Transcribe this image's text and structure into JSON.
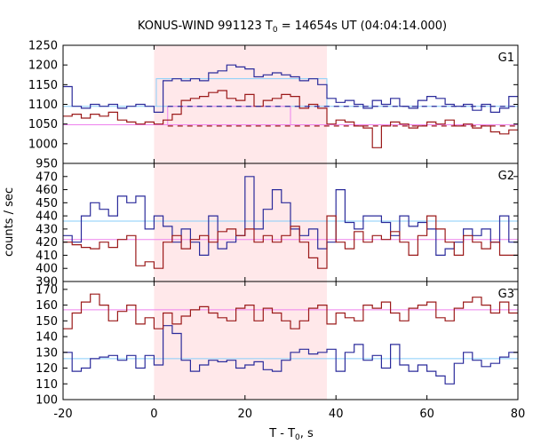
{
  "chart_data": {
    "type": "line",
    "title_main": "KONUS-WIND 991123 T",
    "title_sub": "0",
    "title_rest": " = 14654s UT (04:04:14.000)",
    "xlabel_main": "T - T",
    "xlabel_sub": "0",
    "xlabel_rest": ", s",
    "ylabel": "counts / sec",
    "xlim": [
      -20,
      80
    ],
    "x_ticks": [
      "-20",
      "0",
      "20",
      "40",
      "60",
      "80"
    ],
    "x_tick_values": [
      -20,
      0,
      20,
      40,
      60,
      80
    ],
    "shaded_region": [
      0,
      38
    ],
    "shade_color": "#ffe8ea",
    "colors": {
      "blue": "#2b2b9b",
      "red": "#9b1a1a",
      "cyan": "#87cefa",
      "pink": "#ee82ee"
    },
    "panels": [
      {
        "name": "G1",
        "ylim": [
          950,
          1250
        ],
        "y_ticks": [
          950,
          1000,
          1050,
          1100,
          1150,
          1200,
          1250
        ],
        "y_tick_labels": [
          "950",
          "1000",
          "1050",
          "1100",
          "1150",
          "1200",
          "1250"
        ],
        "bin_start": -20,
        "bin_width": 2,
        "blue": [
          1145,
          1095,
          1090,
          1100,
          1095,
          1100,
          1090,
          1095,
          1100,
          1095,
          1080,
          1160,
          1165,
          1160,
          1165,
          1160,
          1180,
          1185,
          1200,
          1195,
          1190,
          1170,
          1175,
          1180,
          1175,
          1170,
          1160,
          1165,
          1150,
          1115,
          1105,
          1110,
          1100,
          1090,
          1110,
          1100,
          1115,
          1095,
          1090,
          1110,
          1120,
          1115,
          1100,
          1095,
          1100,
          1085,
          1100,
          1080,
          1090,
          1120
        ],
        "red": [
          1070,
          1075,
          1065,
          1075,
          1070,
          1080,
          1060,
          1055,
          1050,
          1055,
          1050,
          1060,
          1075,
          1110,
          1115,
          1120,
          1130,
          1135,
          1115,
          1110,
          1125,
          1095,
          1110,
          1115,
          1125,
          1120,
          1090,
          1100,
          1090,
          1050,
          1060,
          1055,
          1045,
          1040,
          990,
          1045,
          1055,
          1050,
          1040,
          1045,
          1055,
          1050,
          1060,
          1045,
          1050,
          1040,
          1045,
          1030,
          1025,
          1035
        ],
        "bg_blue": 1095,
        "bg_red": 1048,
        "pulse_blue": {
          "level": 1165,
          "x0": 0.5,
          "x1": 38
        },
        "pulse_red": {
          "level": 1095,
          "x0": 3,
          "x1": 30
        },
        "dashed_blue": {
          "level": 1095,
          "x0": 3,
          "x1": 80
        },
        "dashed_red": {
          "level": 1045,
          "x0": 3,
          "x1": 80
        }
      },
      {
        "name": "G2",
        "ylim": [
          390,
          480
        ],
        "y_ticks": [
          390,
          400,
          410,
          420,
          430,
          440,
          450,
          460,
          470
        ],
        "y_tick_labels": [
          "390",
          "400",
          "410",
          "420",
          "430",
          "440",
          "450",
          "460",
          "470"
        ],
        "bin_start": -20,
        "bin_width": 2,
        "blue": [
          425,
          420,
          440,
          450,
          445,
          440,
          455,
          450,
          455,
          430,
          440,
          432,
          420,
          430,
          420,
          410,
          440,
          415,
          420,
          425,
          470,
          430,
          445,
          460,
          450,
          430,
          425,
          430,
          415,
          420,
          460,
          435,
          430,
          440,
          440,
          435,
          425,
          440,
          432,
          435,
          430,
          410,
          415,
          420,
          430,
          425,
          430,
          420,
          440,
          420
        ],
        "red": [
          420,
          418,
          416,
          415,
          420,
          416,
          422,
          425,
          402,
          405,
          400,
          420,
          425,
          415,
          422,
          425,
          420,
          428,
          430,
          425,
          430,
          420,
          425,
          420,
          425,
          432,
          420,
          408,
          400,
          440,
          420,
          415,
          428,
          420,
          425,
          422,
          428,
          420,
          410,
          425,
          440,
          430,
          420,
          410,
          425,
          420,
          415,
          420,
          410,
          410
        ],
        "bg_blue": 436,
        "bg_red": 422
      },
      {
        "name": "G3",
        "ylim": [
          100,
          175
        ],
        "y_ticks": [
          100,
          110,
          120,
          130,
          140,
          150,
          160,
          170
        ],
        "y_tick_labels": [
          "100",
          "110",
          "120",
          "130",
          "140",
          "150",
          "160",
          "170"
        ],
        "bin_start": -20,
        "bin_width": 2,
        "blue": [
          130,
          118,
          120,
          126,
          127,
          128,
          125,
          128,
          120,
          128,
          122,
          147,
          142,
          125,
          118,
          122,
          125,
          124,
          125,
          120,
          122,
          124,
          119,
          118,
          125,
          130,
          132,
          129,
          130,
          132,
          118,
          130,
          135,
          125,
          128,
          120,
          135,
          122,
          118,
          122,
          118,
          115,
          110,
          123,
          130,
          125,
          121,
          123,
          127,
          130
        ],
        "red": [
          145,
          155,
          162,
          167,
          160,
          150,
          156,
          160,
          148,
          152,
          145,
          155,
          148,
          153,
          157,
          159,
          155,
          152,
          150,
          158,
          160,
          150,
          158,
          155,
          150,
          145,
          150,
          158,
          160,
          148,
          155,
          152,
          150,
          160,
          158,
          162,
          155,
          150,
          158,
          160,
          162,
          152,
          150,
          158,
          162,
          165,
          160,
          155,
          162,
          155
        ],
        "bg_blue": 126,
        "bg_red": 157
      }
    ]
  }
}
